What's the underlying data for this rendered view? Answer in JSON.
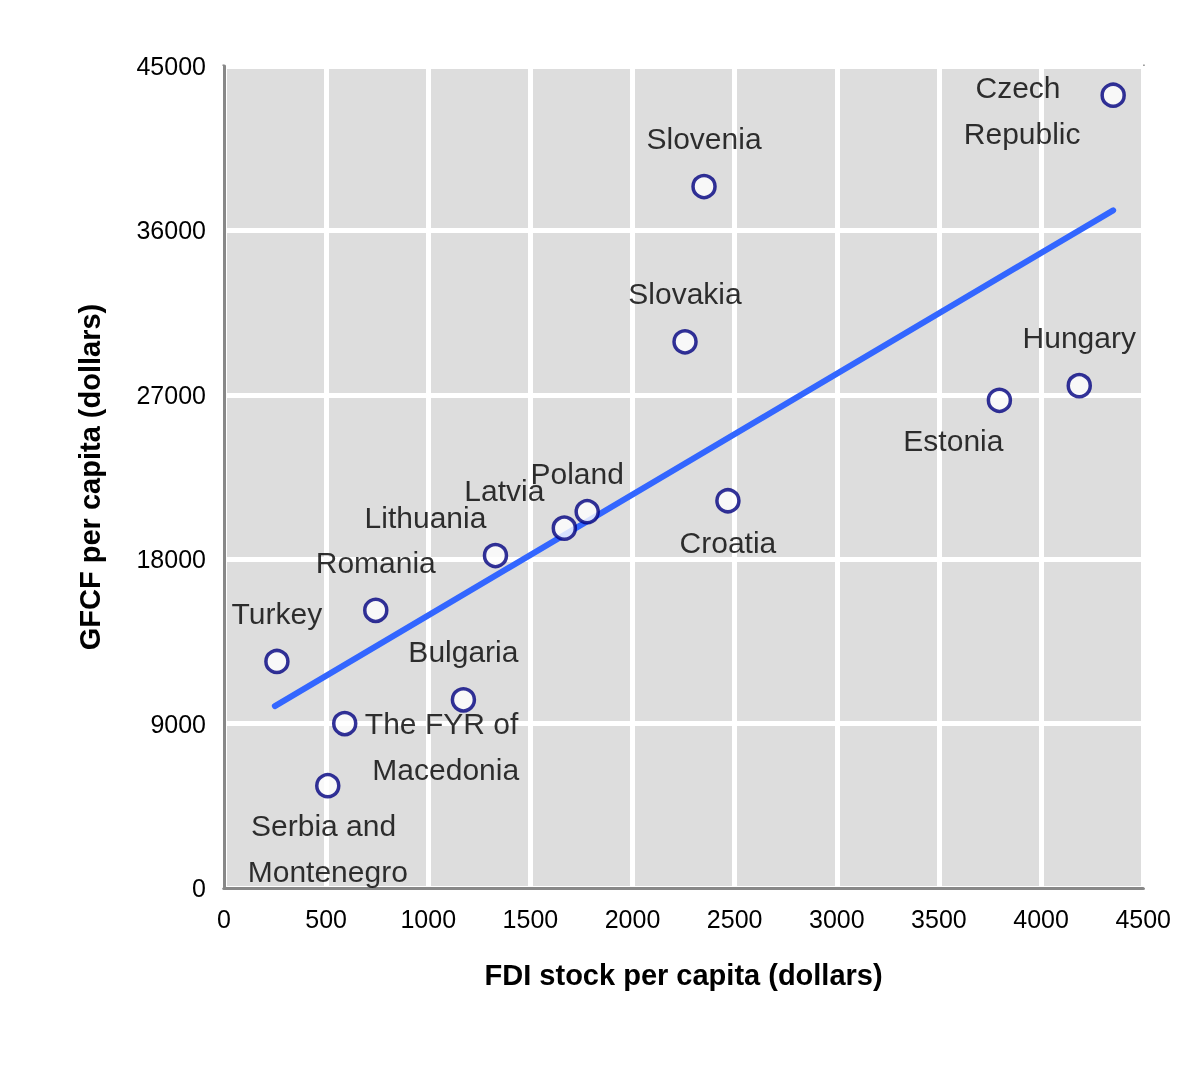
{
  "chart_data": {
    "type": "scatter",
    "xlabel": "FDI stock per capita (dollars)",
    "ylabel": "GFCF per capita (dollars)",
    "series": [
      {
        "color": "#000080",
        "x": [
          4353,
          2350,
          2257,
          4187,
          3796,
          2467,
          1778,
          1666,
          1329,
          743,
          259,
          1172,
          591,
          508
        ],
        "values": [
          43400,
          38400,
          29900,
          27500,
          26700,
          21200,
          20600,
          19700,
          18200,
          15200,
          12400,
          10300,
          9000,
          5600
        ]
      },
      {
        "type": "line",
        "marker": "none",
        "color": "#3366ff",
        "x": [
          249,
          4353
        ],
        "values": [
          9960,
          37100
        ]
      }
    ],
    "annotations": [
      {
        "text": "Czech Republic",
        "x": 4353,
        "y": 43400
      },
      {
        "text": "Slovenia",
        "x": 2350,
        "y": 38400
      },
      {
        "text": "Slovakia",
        "x": 2257,
        "y": 29900
      },
      {
        "text": "Hungary",
        "x": 4187,
        "y": 27500
      },
      {
        "text": "Estonia",
        "x": 3796,
        "y": 26700
      },
      {
        "text": "Croatia",
        "x": 2467,
        "y": 21200
      },
      {
        "text": "Poland",
        "x": 1778,
        "y": 20600
      },
      {
        "text": "Latvia",
        "x": 1666,
        "y": 19700
      },
      {
        "text": "Lithuania",
        "x": 1329,
        "y": 18200
      },
      {
        "text": "Romania",
        "x": 743,
        "y": 15200
      },
      {
        "text": "Turkey",
        "x": 259,
        "y": 12400
      },
      {
        "text": "Bulgaria",
        "x": 1172,
        "y": 10300
      },
      {
        "text": "The FYR of Macedonia",
        "x": 591,
        "y": 9000
      },
      {
        "text": "Serbia and Montenegro",
        "x": 508,
        "y": 5600
      }
    ],
    "xlim": [
      0,
      4500
    ],
    "xticks": [
      0,
      500,
      1000,
      1500,
      2000,
      2500,
      3000,
      3500,
      4000,
      4500
    ],
    "ylim": [
      0,
      45000
    ],
    "yticks": [
      0,
      9000,
      18000,
      27000,
      36000,
      45000
    ],
    "grid": true,
    "marker": "circle",
    "line_style": "solid"
  }
}
